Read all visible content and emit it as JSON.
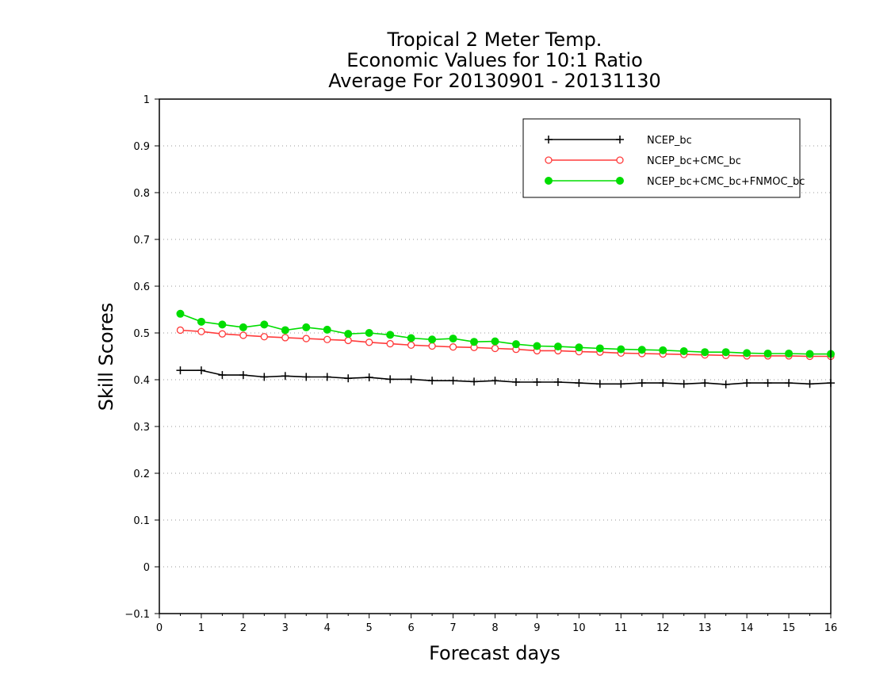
{
  "chart_data": {
    "type": "line",
    "title_lines": [
      "Tropical 2 Meter Temp.",
      "Economic Values for 10:1 Ratio",
      "Average For 20130901 - 20131130"
    ],
    "xlabel": "Forecast days",
    "ylabel": "Skill Scores",
    "xlim": [
      0,
      16
    ],
    "ylim": [
      -0.1,
      1
    ],
    "x_ticks": [
      "0",
      "1",
      "2",
      "3",
      "4",
      "5",
      "6",
      "7",
      "8",
      "9",
      "10",
      "11",
      "12",
      "13",
      "14",
      "15",
      "16"
    ],
    "y_ticks": [
      "-0.1",
      "0",
      "0.1",
      "0.2",
      "0.3",
      "0.4",
      "0.5",
      "0.6",
      "0.7",
      "0.8",
      "0.9",
      "1"
    ],
    "grid": "horizontal dotted",
    "legend_position": "top-right",
    "x": [
      0.5,
      1.0,
      1.5,
      2.0,
      2.5,
      3.0,
      3.5,
      4.0,
      4.5,
      5.0,
      5.5,
      6.0,
      6.5,
      7.0,
      7.5,
      8.0,
      8.5,
      9.0,
      9.5,
      10.0,
      10.5,
      11.0,
      11.5,
      12.0,
      12.5,
      13.0,
      13.5,
      14.0,
      14.5,
      15.0,
      15.5,
      16.0
    ],
    "series": [
      {
        "name": "NCEP_bc",
        "color": "#000000",
        "marker": "plus",
        "values": [
          0.42,
          0.42,
          0.41,
          0.41,
          0.406,
          0.408,
          0.406,
          0.406,
          0.403,
          0.405,
          0.401,
          0.401,
          0.398,
          0.398,
          0.396,
          0.398,
          0.395,
          0.395,
          0.395,
          0.393,
          0.391,
          0.391,
          0.393,
          0.393,
          0.391,
          0.393,
          0.39,
          0.393,
          0.393,
          0.393,
          0.391,
          0.393
        ]
      },
      {
        "name": "NCEP_bc+CMC_bc",
        "color": "#ff3b3b",
        "marker": "open-circle",
        "values": [
          0.506,
          0.503,
          0.498,
          0.495,
          0.492,
          0.49,
          0.488,
          0.486,
          0.484,
          0.48,
          0.477,
          0.474,
          0.472,
          0.47,
          0.469,
          0.467,
          0.465,
          0.462,
          0.462,
          0.46,
          0.459,
          0.457,
          0.456,
          0.455,
          0.454,
          0.453,
          0.452,
          0.451,
          0.451,
          0.451,
          0.45,
          0.45
        ]
      },
      {
        "name": "NCEP_bc+CMC_bc+FNMOC_bc",
        "color": "#00dd00",
        "marker": "filled-circle",
        "values": [
          0.541,
          0.524,
          0.518,
          0.512,
          0.518,
          0.506,
          0.512,
          0.507,
          0.498,
          0.5,
          0.496,
          0.489,
          0.486,
          0.488,
          0.481,
          0.482,
          0.476,
          0.472,
          0.471,
          0.469,
          0.467,
          0.465,
          0.464,
          0.463,
          0.461,
          0.459,
          0.459,
          0.457,
          0.456,
          0.456,
          0.455,
          0.455
        ]
      }
    ]
  }
}
